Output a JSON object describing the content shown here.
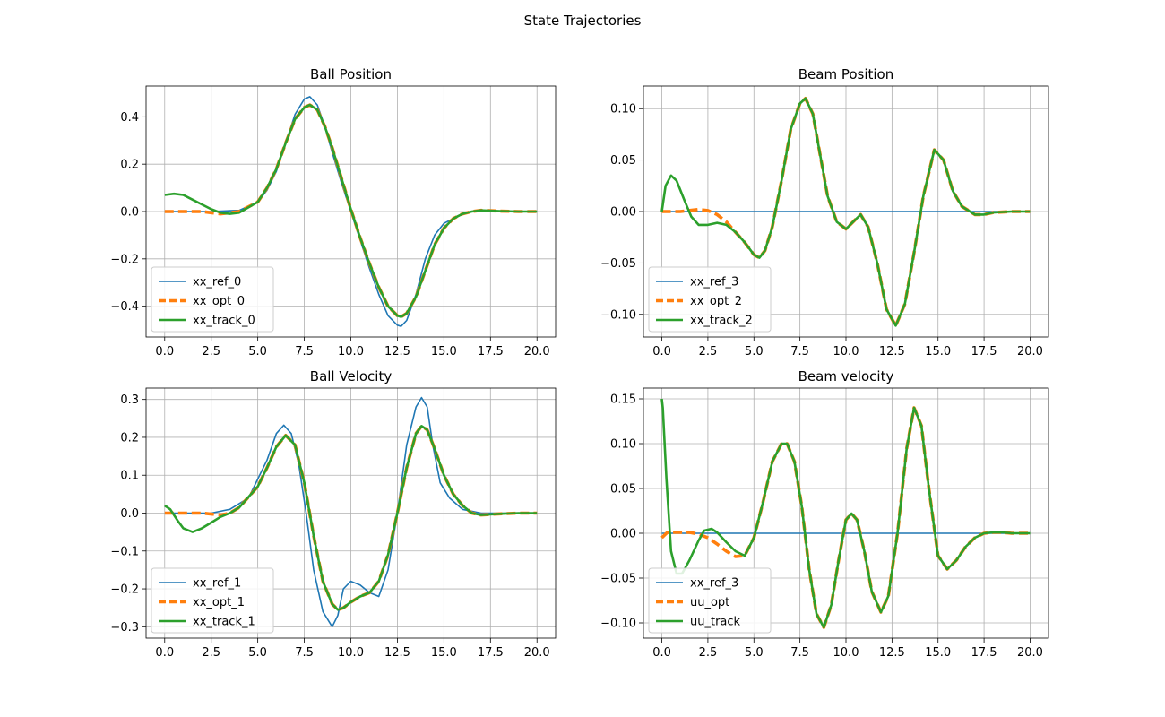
{
  "figure": {
    "suptitle": "State Trajectories"
  },
  "colors": {
    "ref": "#1f77b4",
    "opt": "#ff7f0e",
    "track": "#2ca02c",
    "grid": "#b0b0b0"
  },
  "chart_data": [
    {
      "type": "line",
      "title": "Ball Position",
      "xlim": [
        -1,
        21
      ],
      "ylim": [
        -0.53,
        0.53
      ],
      "xticks": [
        0.0,
        2.5,
        5.0,
        7.5,
        10.0,
        12.5,
        15.0,
        17.5,
        20.0
      ],
      "xtick_labels": [
        "0.0",
        "2.5",
        "5.0",
        "7.5",
        "10.0",
        "12.5",
        "15.0",
        "17.5",
        "20.0"
      ],
      "yticks": [
        -0.4,
        -0.2,
        0.0,
        0.2,
        0.4
      ],
      "ytick_labels": [
        "−0.4",
        "−0.2",
        "0.0",
        "0.2",
        "0.4"
      ],
      "grid": true,
      "legend_placement": "lower-left",
      "series": [
        {
          "name": "xx_ref_0",
          "style": "ref",
          "x": [
            0,
            2.5,
            4,
            5,
            5.5,
            6,
            6.5,
            7,
            7.5,
            7.8,
            8.2,
            8.6,
            9,
            9.5,
            10,
            10.5,
            11,
            11.5,
            12,
            12.5,
            12.7,
            13,
            13.5,
            14,
            14.5,
            15,
            15.5,
            16,
            16.5,
            17,
            18,
            19,
            20
          ],
          "y": [
            0,
            0,
            0.005,
            0.04,
            0.09,
            0.17,
            0.29,
            0.41,
            0.475,
            0.485,
            0.45,
            0.36,
            0.25,
            0.12,
            0,
            -0.12,
            -0.24,
            -0.35,
            -0.44,
            -0.48,
            -0.485,
            -0.46,
            -0.35,
            -0.2,
            -0.1,
            -0.05,
            -0.03,
            -0.01,
            0,
            0.004,
            0.002,
            0,
            0
          ]
        },
        {
          "name": "xx_opt_0",
          "style": "opt",
          "x": [
            0,
            1,
            2,
            3,
            4,
            5,
            5.5,
            6,
            6.5,
            7,
            7.5,
            7.8,
            8.2,
            8.6,
            9,
            9.5,
            10,
            10.5,
            11,
            11.5,
            12,
            12.5,
            12.7,
            13,
            13.5,
            14,
            14.5,
            15,
            15.5,
            16,
            16.5,
            17,
            18,
            19,
            20
          ],
          "y": [
            0,
            0,
            0,
            -0.01,
            0,
            0.04,
            0.1,
            0.18,
            0.29,
            0.39,
            0.44,
            0.45,
            0.43,
            0.36,
            0.27,
            0.14,
            0.01,
            -0.11,
            -0.22,
            -0.32,
            -0.4,
            -0.44,
            -0.445,
            -0.43,
            -0.36,
            -0.25,
            -0.14,
            -0.07,
            -0.03,
            -0.01,
            0,
            0.005,
            0.002,
            0,
            0
          ]
        },
        {
          "name": "xx_track_0",
          "style": "track",
          "x": [
            0,
            0.5,
            1,
            1.5,
            2,
            2.5,
            3,
            3.5,
            4,
            5,
            5.5,
            6,
            6.5,
            7,
            7.5,
            7.8,
            8.2,
            8.6,
            9,
            9.5,
            10,
            10.5,
            11,
            11.5,
            12,
            12.5,
            12.7,
            13,
            13.5,
            14,
            14.5,
            15,
            15.5,
            16,
            16.5,
            17,
            18,
            19,
            20
          ],
          "y": [
            0.07,
            0.075,
            0.07,
            0.05,
            0.03,
            0.01,
            -0.005,
            -0.01,
            -0.005,
            0.04,
            0.1,
            0.18,
            0.29,
            0.39,
            0.44,
            0.45,
            0.43,
            0.36,
            0.27,
            0.14,
            0.01,
            -0.11,
            -0.22,
            -0.32,
            -0.4,
            -0.44,
            -0.445,
            -0.43,
            -0.36,
            -0.25,
            -0.14,
            -0.07,
            -0.03,
            -0.01,
            0,
            0.005,
            0.002,
            0,
            0
          ]
        }
      ]
    },
    {
      "type": "line",
      "title": "Beam Position",
      "xlim": [
        -1,
        21
      ],
      "ylim": [
        -0.122,
        0.122
      ],
      "xticks": [
        0.0,
        2.5,
        5.0,
        7.5,
        10.0,
        12.5,
        15.0,
        17.5,
        20.0
      ],
      "xtick_labels": [
        "0.0",
        "2.5",
        "5.0",
        "7.5",
        "10.0",
        "12.5",
        "15.0",
        "17.5",
        "20.0"
      ],
      "yticks": [
        -0.1,
        -0.05,
        0.0,
        0.05,
        0.1
      ],
      "ytick_labels": [
        "−0.10",
        "−0.05",
        "0.00",
        "0.05",
        "0.10"
      ],
      "grid": true,
      "legend_placement": "lower-left",
      "series": [
        {
          "name": "xx_ref_3",
          "style": "ref",
          "x": [
            0,
            20
          ],
          "y": [
            0,
            0
          ]
        },
        {
          "name": "xx_opt_2",
          "style": "opt",
          "x": [
            0,
            1,
            2,
            2.5,
            3,
            3.5,
            4,
            4.5,
            5,
            5.3,
            5.6,
            6,
            6.5,
            7,
            7.5,
            7.8,
            8.2,
            8.6,
            9,
            9.5,
            10,
            10.5,
            10.8,
            11.2,
            11.7,
            12.2,
            12.7,
            13.2,
            13.7,
            14.2,
            14.8,
            15.3,
            15.8,
            16.3,
            17,
            17.5,
            18,
            19,
            20
          ],
          "y": [
            0,
            0,
            0.002,
            0.001,
            -0.003,
            -0.01,
            -0.02,
            -0.03,
            -0.042,
            -0.045,
            -0.038,
            -0.015,
            0.03,
            0.08,
            0.105,
            0.11,
            0.095,
            0.055,
            0.015,
            -0.01,
            -0.017,
            -0.008,
            -0.003,
            -0.015,
            -0.05,
            -0.095,
            -0.111,
            -0.09,
            -0.04,
            0.015,
            0.06,
            0.05,
            0.02,
            0.005,
            -0.003,
            -0.003,
            -0.001,
            0,
            0
          ]
        },
        {
          "name": "xx_track_2",
          "style": "track",
          "x": [
            0,
            0.2,
            0.5,
            0.8,
            1.2,
            1.6,
            2,
            2.5,
            3,
            3.5,
            4,
            4.5,
            5,
            5.3,
            5.6,
            6,
            6.5,
            7,
            7.5,
            7.8,
            8.2,
            8.6,
            9,
            9.5,
            10,
            10.5,
            10.8,
            11.2,
            11.7,
            12.2,
            12.7,
            13.2,
            13.7,
            14.2,
            14.8,
            15.3,
            15.8,
            16.3,
            17,
            17.5,
            18,
            19,
            20
          ],
          "y": [
            0,
            0.025,
            0.035,
            0.03,
            0.012,
            -0.005,
            -0.013,
            -0.013,
            -0.011,
            -0.013,
            -0.02,
            -0.03,
            -0.042,
            -0.045,
            -0.038,
            -0.015,
            0.03,
            0.08,
            0.105,
            0.11,
            0.095,
            0.055,
            0.015,
            -0.01,
            -0.017,
            -0.008,
            -0.003,
            -0.015,
            -0.05,
            -0.095,
            -0.111,
            -0.09,
            -0.04,
            0.015,
            0.06,
            0.05,
            0.02,
            0.005,
            -0.003,
            -0.003,
            -0.001,
            0,
            0
          ]
        }
      ]
    },
    {
      "type": "line",
      "title": "Ball Velocity",
      "xlim": [
        -1,
        21
      ],
      "ylim": [
        -0.33,
        0.33
      ],
      "xticks": [
        0.0,
        2.5,
        5.0,
        7.5,
        10.0,
        12.5,
        15.0,
        17.5,
        20.0
      ],
      "xtick_labels": [
        "0.0",
        "2.5",
        "5.0",
        "7.5",
        "10.0",
        "12.5",
        "15.0",
        "17.5",
        "20.0"
      ],
      "yticks": [
        -0.3,
        -0.2,
        -0.1,
        0.0,
        0.1,
        0.2,
        0.3
      ],
      "ytick_labels": [
        "−0.3",
        "−0.2",
        "−0.1",
        "0.0",
        "0.1",
        "0.2",
        "0.3"
      ],
      "grid": true,
      "legend_placement": "lower-left",
      "series": [
        {
          "name": "xx_ref_1",
          "style": "ref",
          "x": [
            0,
            2.5,
            3.5,
            4.5,
            5.5,
            6,
            6.4,
            6.8,
            7.2,
            7.6,
            8,
            8.5,
            9,
            9.3,
            9.6,
            10,
            10.5,
            11,
            11.5,
            12,
            12.5,
            13,
            13.5,
            13.8,
            14.1,
            14.4,
            14.8,
            15.3,
            16,
            17,
            18,
            19,
            20
          ],
          "y": [
            0,
            0,
            0.01,
            0.04,
            0.14,
            0.21,
            0.232,
            0.21,
            0.13,
            0,
            -0.15,
            -0.26,
            -0.3,
            -0.27,
            -0.2,
            -0.18,
            -0.19,
            -0.21,
            -0.22,
            -0.15,
            0,
            0.18,
            0.28,
            0.305,
            0.28,
            0.18,
            0.08,
            0.04,
            0.01,
            0,
            0,
            0,
            0
          ]
        },
        {
          "name": "xx_opt_1",
          "style": "opt",
          "x": [
            0,
            1,
            2,
            3,
            3.5,
            4,
            5,
            5.5,
            6,
            6.5,
            7,
            7.5,
            8,
            8.5,
            9,
            9.3,
            9.6,
            10,
            10.5,
            11,
            11.5,
            12,
            12.5,
            13,
            13.5,
            13.8,
            14.1,
            14.5,
            15,
            15.5,
            16,
            16.5,
            17,
            18,
            19,
            20
          ],
          "y": [
            0,
            0,
            0,
            -0.005,
            0,
            0.015,
            0.07,
            0.12,
            0.175,
            0.205,
            0.18,
            0.08,
            -0.06,
            -0.18,
            -0.24,
            -0.255,
            -0.25,
            -0.235,
            -0.22,
            -0.21,
            -0.18,
            -0.11,
            0,
            0.12,
            0.21,
            0.23,
            0.22,
            0.17,
            0.1,
            0.05,
            0.02,
            0,
            -0.005,
            -0.002,
            0,
            0
          ]
        },
        {
          "name": "xx_track_1",
          "style": "track",
          "x": [
            0,
            0.3,
            0.7,
            1,
            1.5,
            2,
            2.5,
            3,
            3.5,
            4,
            5,
            5.5,
            6,
            6.5,
            7,
            7.5,
            8,
            8.5,
            9,
            9.3,
            9.6,
            10,
            10.5,
            11,
            11.5,
            12,
            12.5,
            13,
            13.5,
            13.8,
            14.1,
            14.5,
            15,
            15.5,
            16,
            16.5,
            17,
            18,
            19,
            20
          ],
          "y": [
            0.02,
            0.01,
            -0.02,
            -0.04,
            -0.05,
            -0.04,
            -0.025,
            -0.01,
            0,
            0.015,
            0.07,
            0.12,
            0.175,
            0.205,
            0.18,
            0.08,
            -0.06,
            -0.18,
            -0.24,
            -0.255,
            -0.25,
            -0.235,
            -0.22,
            -0.21,
            -0.18,
            -0.11,
            0,
            0.12,
            0.21,
            0.23,
            0.22,
            0.17,
            0.1,
            0.05,
            0.02,
            0,
            -0.005,
            -0.002,
            0,
            0
          ]
        }
      ]
    },
    {
      "type": "line",
      "title": "Beam velocity",
      "xlim": [
        -1,
        21
      ],
      "ylim": [
        -0.117,
        0.162
      ],
      "xticks": [
        0.0,
        2.5,
        5.0,
        7.5,
        10.0,
        12.5,
        15.0,
        17.5,
        20.0
      ],
      "xtick_labels": [
        "0.0",
        "2.5",
        "5.0",
        "7.5",
        "10.0",
        "12.5",
        "15.0",
        "17.5",
        "20.0"
      ],
      "yticks": [
        -0.1,
        -0.05,
        0.0,
        0.05,
        0.1,
        0.15
      ],
      "ytick_labels": [
        "−0.10",
        "−0.05",
        "0.00",
        "0.05",
        "0.10",
        "0.15"
      ],
      "grid": true,
      "legend_placement": "lower-left",
      "series": [
        {
          "name": "xx_ref_3",
          "style": "ref",
          "x": [
            0,
            20
          ],
          "y": [
            0,
            0
          ]
        },
        {
          "name": "uu_opt",
          "style": "opt",
          "x": [
            0,
            0.3,
            1,
            1.5,
            2,
            2.5,
            3,
            3.5,
            4,
            4.5,
            5,
            5.5,
            6,
            6.5,
            6.8,
            7.2,
            7.6,
            8,
            8.4,
            8.8,
            9.2,
            9.6,
            10,
            10.3,
            10.6,
            11,
            11.4,
            11.9,
            12.3,
            12.8,
            13.3,
            13.7,
            14.1,
            14.5,
            15,
            15.5,
            16,
            16.5,
            17,
            17.5,
            18,
            18.5,
            19,
            20
          ],
          "y": [
            -0.005,
            0.001,
            0.001,
            0.001,
            -0.001,
            -0.005,
            -0.012,
            -0.02,
            -0.026,
            -0.025,
            -0.005,
            0.035,
            0.08,
            0.1,
            0.1,
            0.08,
            0.03,
            -0.04,
            -0.09,
            -0.105,
            -0.08,
            -0.03,
            0.015,
            0.022,
            0.015,
            -0.02,
            -0.065,
            -0.088,
            -0.07,
            0,
            0.095,
            0.14,
            0.12,
            0.05,
            -0.025,
            -0.04,
            -0.03,
            -0.015,
            -0.005,
            0,
            0.001,
            0.001,
            0,
            0
          ]
        },
        {
          "name": "uu_track",
          "style": "track",
          "x": [
            0,
            0.05,
            0.25,
            0.5,
            0.8,
            1.1,
            1.5,
            2,
            2.3,
            2.7,
            3,
            3.5,
            4,
            4.5,
            5,
            5.5,
            6,
            6.5,
            6.8,
            7.2,
            7.6,
            8,
            8.4,
            8.8,
            9.2,
            9.6,
            10,
            10.3,
            10.6,
            11,
            11.4,
            11.9,
            12.3,
            12.8,
            13.3,
            13.7,
            14.1,
            14.5,
            15,
            15.5,
            16,
            16.5,
            17,
            17.5,
            18,
            18.5,
            19,
            20
          ],
          "y": [
            0.15,
            0.14,
            0.06,
            -0.02,
            -0.045,
            -0.045,
            -0.03,
            -0.008,
            0.003,
            0.005,
            0.001,
            -0.01,
            -0.02,
            -0.025,
            -0.005,
            0.035,
            0.08,
            0.1,
            0.1,
            0.08,
            0.03,
            -0.04,
            -0.09,
            -0.105,
            -0.08,
            -0.03,
            0.015,
            0.022,
            0.015,
            -0.02,
            -0.065,
            -0.088,
            -0.07,
            0,
            0.095,
            0.14,
            0.12,
            0.05,
            -0.025,
            -0.04,
            -0.03,
            -0.015,
            -0.005,
            0,
            0.001,
            0.001,
            0,
            0
          ]
        }
      ]
    }
  ]
}
